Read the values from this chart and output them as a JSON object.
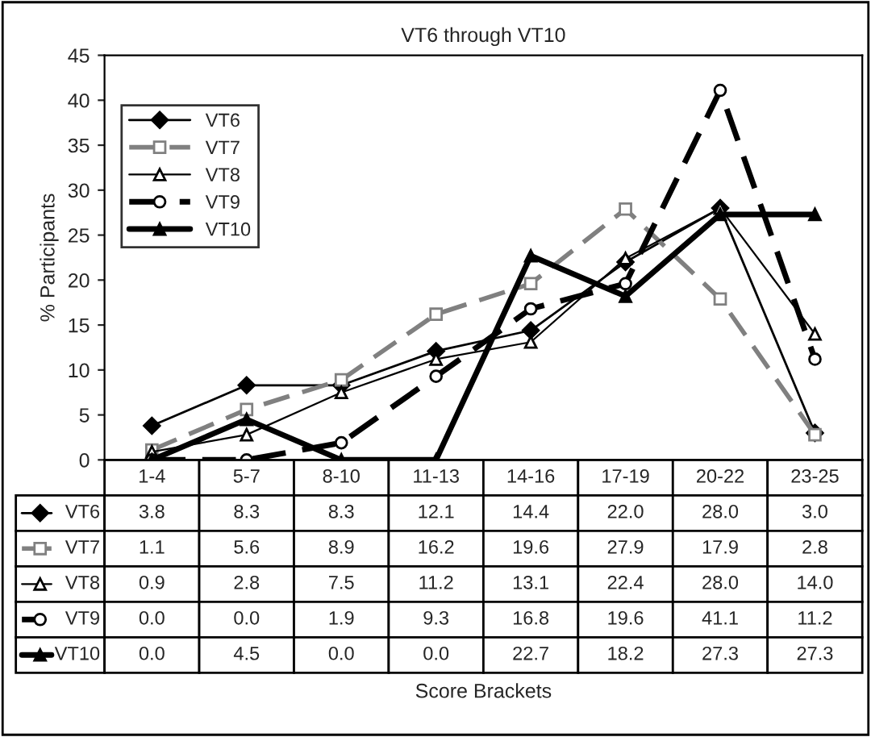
{
  "chart_data": {
    "type": "line",
    "title": "VT6 through VT10",
    "annotations": [
      "Score Brackets"
    ],
    "ylabel": "% Participants",
    "categories": [
      "1-4",
      "5-7",
      "8-10",
      "11-13",
      "14-16",
      "17-19",
      "20-22",
      "23-25"
    ],
    "ylim": [
      0,
      45
    ],
    "yticks": [
      0,
      5,
      10,
      15,
      20,
      25,
      30,
      35,
      40,
      45
    ],
    "grid": false,
    "legend": "top left",
    "series": [
      {
        "name": "VT6",
        "color": "#000000",
        "marker": "diamond",
        "line_style": "solid",
        "values": [
          3.8,
          8.3,
          8.3,
          12.1,
          14.4,
          22.0,
          28.0,
          3.0
        ],
        "value_labels": [
          "3.8",
          "8.3",
          "8.3",
          "12.1",
          "14.4",
          "22.0",
          "28.0",
          "3.0"
        ]
      },
      {
        "name": "VT7",
        "color": "#808080",
        "marker": "square",
        "line_style": "dashed",
        "values": [
          1.1,
          5.6,
          8.9,
          16.2,
          19.6,
          27.9,
          17.9,
          2.8
        ],
        "value_labels": [
          "1.1",
          "5.6",
          "8.9",
          "16.2",
          "19.6",
          "27.9",
          "17.9",
          "2.8"
        ]
      },
      {
        "name": "VT8",
        "color": "#000000",
        "marker": "triangle",
        "line_style": "solid",
        "values": [
          0.9,
          2.8,
          7.5,
          11.2,
          13.1,
          22.4,
          28.0,
          14.0
        ],
        "value_labels": [
          "0.9",
          "2.8",
          "7.5",
          "11.2",
          "13.1",
          "22.4",
          "28.0",
          "14.0"
        ]
      },
      {
        "name": "VT9",
        "color": "#000000",
        "marker": "circle",
        "line_style": "dashed",
        "values": [
          0.0,
          0.0,
          1.9,
          9.3,
          16.8,
          19.6,
          41.1,
          11.2
        ],
        "value_labels": [
          "0.0",
          "0.0",
          "1.9",
          "9.3",
          "16.8",
          "19.6",
          "41.1",
          "11.2"
        ]
      },
      {
        "name": "VT10",
        "color": "#000000",
        "marker": "triangle",
        "line_style": "solid",
        "values": [
          0.0,
          4.5,
          0.0,
          0.0,
          22.7,
          18.2,
          27.3,
          27.3
        ],
        "value_labels": [
          "0.0",
          "4.5",
          "0.0",
          "0.0",
          "22.7",
          "18.2",
          "27.3",
          "27.3"
        ]
      }
    ]
  }
}
